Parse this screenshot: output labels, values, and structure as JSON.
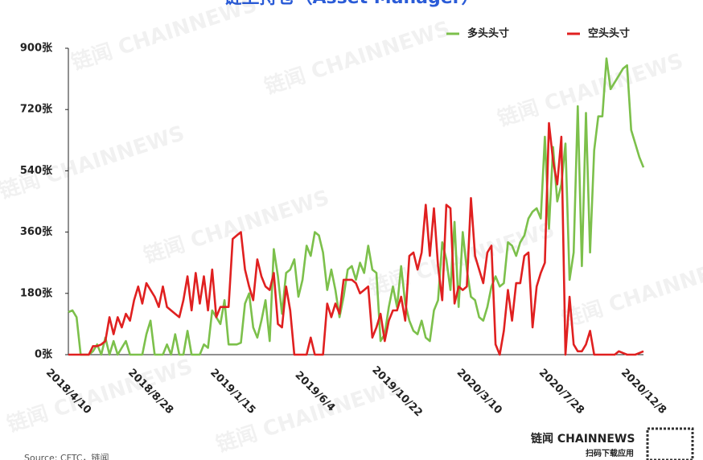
{
  "chart_data": {
    "type": "line",
    "title": "链上持仓（Asset Manager）",
    "source": "Source: CFTC，链闻",
    "brand": "链闻 CHAINNEWS",
    "brand_sub": "扫码下载应用",
    "categories": [
      "2018/4/10",
      null,
      null,
      null,
      null,
      null,
      null,
      null,
      null,
      null,
      null,
      null,
      null,
      null,
      null,
      null,
      null,
      null,
      null,
      null,
      "2018/8/28",
      null,
      null,
      null,
      null,
      null,
      null,
      null,
      null,
      null,
      null,
      null,
      null,
      null,
      null,
      null,
      null,
      null,
      null,
      null,
      "2019/1/15",
      null,
      null,
      null,
      null,
      null,
      null,
      null,
      null,
      null,
      null,
      null,
      null,
      null,
      null,
      null,
      null,
      null,
      null,
      null,
      "2019/6/4",
      null,
      null,
      null,
      null,
      null,
      null,
      null,
      null,
      null,
      null,
      null,
      null,
      null,
      null,
      null,
      null,
      null,
      null,
      null,
      "2019/10/22",
      null,
      null,
      null,
      null,
      null,
      null,
      null,
      null,
      null,
      null,
      null,
      null,
      null,
      null,
      null,
      null,
      null,
      null,
      null,
      "2020/3/10",
      null,
      null,
      null,
      null,
      null,
      null,
      null,
      null,
      null,
      null,
      null,
      null,
      null,
      null,
      null,
      null,
      null,
      null,
      null,
      "2020/7/28",
      null,
      null,
      null,
      null,
      null,
      null,
      null,
      null,
      null,
      null,
      null,
      null,
      null,
      null,
      null,
      null,
      null,
      null,
      null,
      "2020/12/8"
    ],
    "series": [
      {
        "name": "多头头寸",
        "color": "#7cc04b",
        "values": [
          125,
          130,
          110,
          0,
          0,
          0,
          10,
          30,
          0,
          50,
          0,
          40,
          0,
          20,
          40,
          0,
          0,
          0,
          0,
          60,
          100,
          0,
          0,
          0,
          30,
          0,
          60,
          0,
          0,
          70,
          0,
          0,
          0,
          30,
          20,
          130,
          110,
          90,
          160,
          30,
          30,
          30,
          35,
          150,
          180,
          80,
          50,
          100,
          160,
          40,
          310,
          230,
          120,
          240,
          250,
          280,
          170,
          220,
          320,
          290,
          360,
          350,
          300,
          190,
          250,
          190,
          110,
          170,
          250,
          260,
          220,
          270,
          240,
          320,
          250,
          240,
          40,
          60,
          140,
          200,
          140,
          260,
          150,
          100,
          70,
          60,
          100,
          50,
          40,
          130,
          160,
          330,
          280,
          190,
          390,
          140,
          360,
          250,
          170,
          160,
          110,
          100,
          140,
          200,
          230,
          200,
          210,
          330,
          320,
          290,
          330,
          350,
          400,
          420,
          430,
          400,
          640,
          370,
          610,
          450,
          500,
          620,
          220,
          300,
          730,
          260,
          710,
          300,
          600,
          700,
          700,
          870,
          780,
          800,
          820,
          840,
          850,
          660,
          620,
          580,
          550
        ]
      },
      {
        "name": "空头头寸",
        "color": "#e02020",
        "values": [
          0,
          0,
          0,
          0,
          0,
          0,
          25,
          25,
          30,
          40,
          110,
          60,
          110,
          80,
          120,
          100,
          160,
          200,
          150,
          210,
          190,
          170,
          140,
          200,
          140,
          130,
          120,
          110,
          160,
          230,
          130,
          240,
          150,
          230,
          130,
          250,
          110,
          140,
          140,
          140,
          340,
          350,
          360,
          250,
          200,
          160,
          280,
          230,
          200,
          190,
          240,
          90,
          80,
          200,
          130,
          0,
          0,
          0,
          0,
          50,
          0,
          0,
          0,
          150,
          110,
          150,
          120,
          220,
          220,
          220,
          210,
          180,
          190,
          200,
          50,
          80,
          120,
          40,
          100,
          130,
          130,
          170,
          100,
          290,
          300,
          250,
          300,
          440,
          290,
          430,
          260,
          160,
          440,
          430,
          150,
          200,
          190,
          200,
          460,
          290,
          250,
          210,
          300,
          320,
          30,
          0,
          70,
          190,
          100,
          210,
          210,
          290,
          300,
          80,
          200,
          240,
          270,
          680,
          570,
          500,
          640,
          0,
          170,
          30,
          10,
          10,
          30,
          70,
          0,
          0,
          0,
          0,
          0,
          0,
          10,
          5,
          0,
          0,
          0,
          5,
          10
        ]
      }
    ],
    "ylim": [
      0,
      900
    ],
    "yticks": [
      {
        "value": 0,
        "label": "0张"
      },
      {
        "value": 180,
        "label": "180张"
      },
      {
        "value": 360,
        "label": "360张"
      },
      {
        "value": 540,
        "label": "540张"
      },
      {
        "value": 720,
        "label": "720张"
      },
      {
        "value": 900,
        "label": "900张"
      }
    ],
    "grid": false,
    "legend": "top-right"
  }
}
